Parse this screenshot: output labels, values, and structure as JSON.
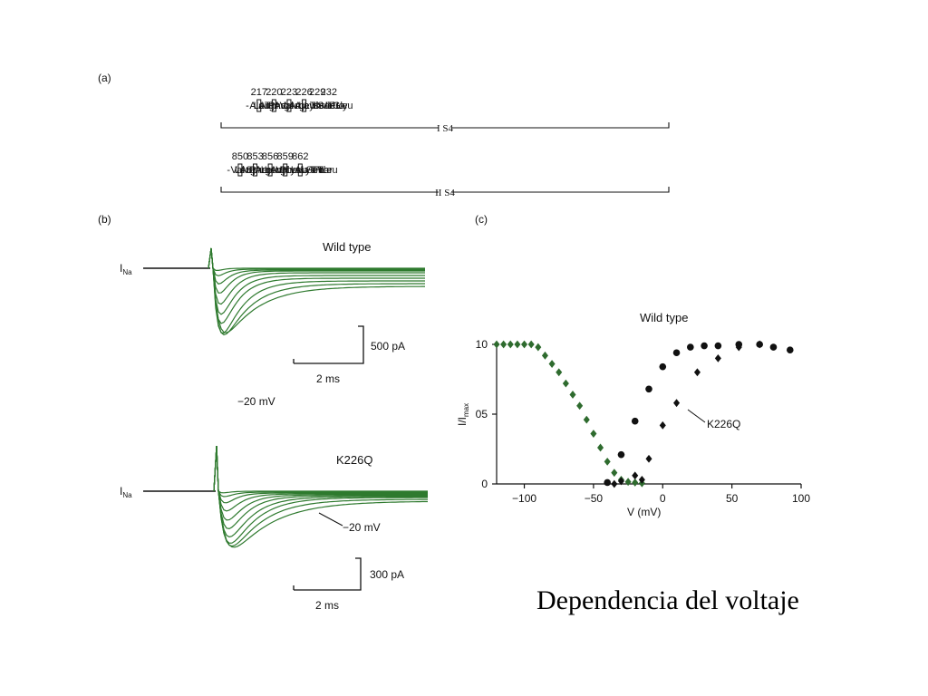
{
  "panel_a": {
    "label": "(a)",
    "row1": {
      "prefix": "-",
      "tokens": [
        {
          "text": "Ala"
        },
        {
          "text": "Leu"
        },
        {
          "text": "Arg",
          "boxed": true,
          "num": "217"
        },
        {
          "text": "Thr"
        },
        {
          "text": "Phe"
        },
        {
          "text": "Arg",
          "boxed": true,
          "num": "220"
        },
        {
          "text": "Val"
        },
        {
          "text": "Leu"
        },
        {
          "text": "Arg",
          "boxed": true,
          "num": "223"
        },
        {
          "text": "Ala"
        },
        {
          "text": "Leu"
        },
        {
          "text": "Lys",
          "boxed": true,
          "num": "226"
        },
        {
          "text": "Thr"
        },
        {
          "text": "Ile"
        },
        {
          "text": "Ser",
          "num": "229"
        },
        {
          "text": "Val"
        },
        {
          "text": "Ile"
        },
        {
          "text": "Pro",
          "num": "232"
        },
        {
          "text": "Gly"
        },
        {
          "text": "Leu"
        }
      ],
      "suffix": "-",
      "segment_label": "I S4"
    },
    "row2": {
      "prefix": "-",
      "tokens": [
        {
          "text": "Val"
        },
        {
          "text": "Leu"
        },
        {
          "text": "Arg",
          "boxed": true,
          "num": "850"
        },
        {
          "text": "Ser"
        },
        {
          "text": "Phe"
        },
        {
          "text": "Arg",
          "boxed": true,
          "num": "853"
        },
        {
          "text": "Leu"
        },
        {
          "text": "Leu"
        },
        {
          "text": "Arg",
          "boxed": true,
          "num": "856"
        },
        {
          "text": "Val"
        },
        {
          "text": "Phe"
        },
        {
          "text": "Lys",
          "boxed": true,
          "num": "859"
        },
        {
          "text": "Leu"
        },
        {
          "text": "Ala"
        },
        {
          "text": "Lys",
          "boxed": true,
          "num": "862"
        },
        {
          "text": "Ser"
        },
        {
          "text": "Tro"
        },
        {
          "text": "Pro"
        },
        {
          "text": "Thr"
        },
        {
          "text": "Leu"
        }
      ],
      "suffix": "-",
      "segment_label": "II S4"
    }
  },
  "panel_b": {
    "label": "(b)",
    "top": {
      "title": "Wild type",
      "current_label": "I",
      "current_sub": "Na",
      "voltage_label": "−20 mV",
      "scale_current": "500 pA",
      "scale_time": "2 ms"
    },
    "bottom": {
      "title": "K226Q",
      "current_label": "I",
      "current_sub": "Na",
      "voltage_label": "−20 mV",
      "scale_current": "300 pA",
      "scale_time": "2 ms"
    },
    "trace_color": "#2f7a2f"
  },
  "panel_c": {
    "label": "(c)",
    "title": "Wild type",
    "series_label": "K226Q",
    "ylabel_main": "I/I",
    "ylabel_sub": "max",
    "xlabel": "V (mV)"
  },
  "chart_data": {
    "type": "scatter",
    "xlim": [
      -120,
      100
    ],
    "ylim": [
      0,
      10
    ],
    "x_ticks": [
      "−100",
      "−50",
      "0",
      "50",
      "100"
    ],
    "x_tick_values": [
      -100,
      -50,
      0,
      50,
      100
    ],
    "y_ticks": [
      "0",
      "05",
      "10"
    ],
    "y_tick_values": [
      0,
      5,
      10
    ],
    "series": [
      {
        "marker": "diamond",
        "color": "#2e6b2e",
        "x": [
          -120,
          -115,
          -110,
          -105,
          -100,
          -95,
          -90,
          -85,
          -80,
          -75,
          -70,
          -65,
          -60,
          -55,
          -50,
          -45,
          -40,
          -35,
          -30,
          -25,
          -20,
          -15
        ],
        "y": [
          10,
          10,
          10,
          10,
          10,
          10,
          9.8,
          9.2,
          8.6,
          8.0,
          7.2,
          6.4,
          5.6,
          4.6,
          3.6,
          2.6,
          1.6,
          0.8,
          0.3,
          0.15,
          0.1,
          0.05
        ]
      },
      {
        "marker": "circle",
        "color": "#111111",
        "x": [
          -40,
          -30,
          -20,
          -10,
          0,
          10,
          20,
          30,
          40,
          55,
          70,
          80,
          92
        ],
        "y": [
          0.1,
          2.1,
          4.5,
          6.8,
          8.4,
          9.4,
          9.8,
          9.9,
          9.9,
          10,
          10,
          9.8,
          9.6
        ]
      },
      {
        "marker": "diamond",
        "color": "#111111",
        "x": [
          -35,
          -30,
          -20,
          -15,
          -10,
          0,
          10,
          25,
          40,
          55,
          70
        ],
        "y": [
          0,
          0.2,
          0.6,
          0.3,
          1.8,
          4.2,
          5.8,
          8.0,
          9.0,
          9.8,
          10
        ]
      }
    ]
  },
  "caption": "Dependencia del voltaje"
}
